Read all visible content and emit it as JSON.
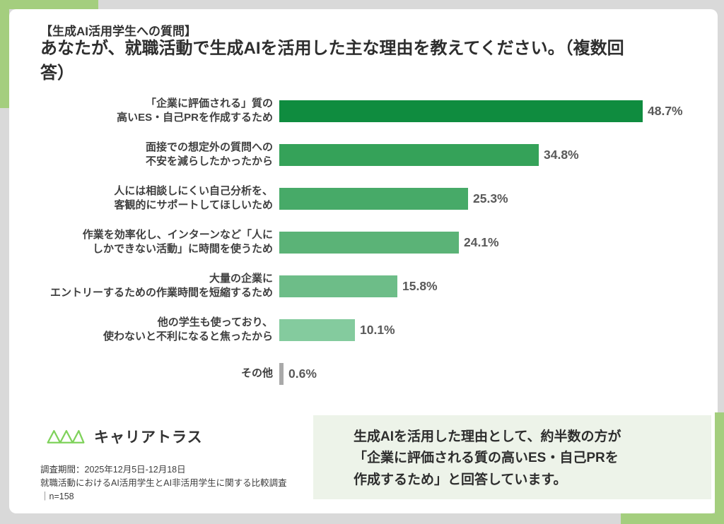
{
  "frame": {
    "background": "#d9d9d9",
    "card_background": "#ffffff",
    "accent_color": "#a4ce7e"
  },
  "header": {
    "tag": "【生成AI活用学生への質問】",
    "title": "あなたが、就職活動で生成AIを活用した主な理由を教えてください。（複数回答）"
  },
  "chart_data": {
    "type": "bar",
    "orientation": "horizontal",
    "unit": "%",
    "xlim": [
      0,
      50
    ],
    "grid": false,
    "legend": false,
    "categories": [
      "「企業に評価される」質の\n高いES・自己PRを作成するため",
      "面接での想定外の質問への\n不安を減らしたかったから",
      "人には相談しにくい自己分析を、\n客観的にサポートしてほしいため",
      "作業を効率化し、インターンなど「人に\nしかできない活動」に時間を使うため",
      "大量の企業に\nエントリーするための作業時間を短縮するため",
      "他の学生も使っており、\n使わないと不利になると焦ったから",
      "その他"
    ],
    "values": [
      48.7,
      34.8,
      25.3,
      24.1,
      15.8,
      10.1,
      0.6
    ],
    "value_labels": [
      "48.7%",
      "34.8%",
      "25.3%",
      "24.1%",
      "15.8%",
      "10.1%",
      "0.6%"
    ],
    "bar_colors": [
      "#0f8c3f",
      "#35a259",
      "#47aa68",
      "#5bb377",
      "#6dbd88",
      "#84cb9e",
      "#a9a9a9"
    ]
  },
  "logo": {
    "icon": "truss-zigzag-icon",
    "icon_color": "#7fd25b",
    "text": "キャリアトラス"
  },
  "footnote": {
    "text": "調査期間：2025年12月5日-12月18日\n就職活動におけるAI活用学生とAI非活用学生に関する比較調査\n｜n=158"
  },
  "callout": {
    "background": "#edf3e9",
    "text": "生成AIを活用した理由として、約半数の方が\n「企業に評価される質の高いES・自己PRを\n作成するため」と回答しています。"
  }
}
